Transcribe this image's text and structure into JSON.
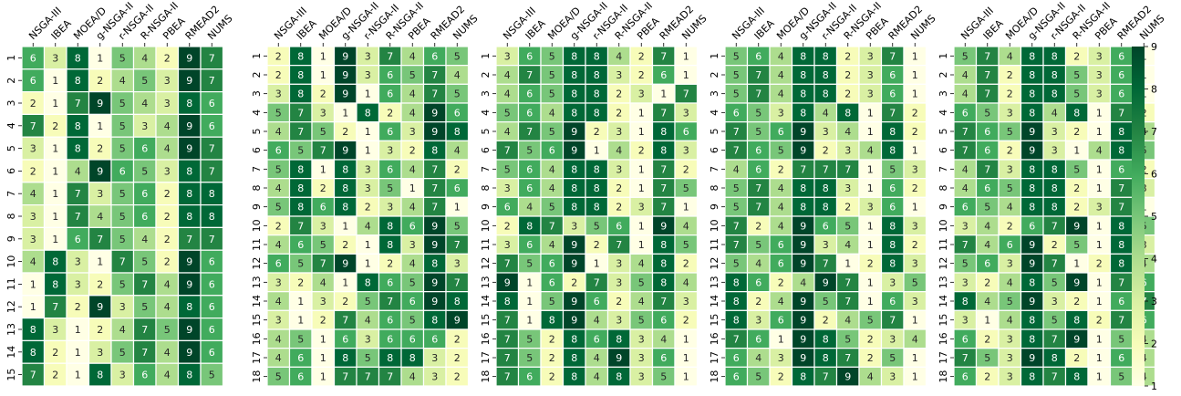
{
  "colorscale": {
    "colors": [
      "#ffffe5",
      "#f7fcb9",
      "#d9f0a3",
      "#addd8e",
      "#78c679",
      "#41ab5d",
      "#238443",
      "#006837",
      "#004529"
    ],
    "min": 1,
    "max": 9,
    "ticks": [
      "1",
      "2",
      "3",
      "4",
      "5",
      "6",
      "7",
      "8",
      "9"
    ]
  },
  "chart_data": [
    {
      "type": "heatmap",
      "columns": [
        "NSGA-III",
        "IBEA",
        "MOEA/D",
        "g-NSGA-II",
        "r-NSGA-II",
        "R-NSGA-II",
        "PBEA",
        "RMEAD2",
        "NUMS"
      ],
      "rows": [
        "1",
        "2",
        "3",
        "4",
        "5",
        "6",
        "7",
        "8",
        "9",
        "10",
        "11",
        "12",
        "13",
        "14",
        "15"
      ],
      "values": [
        [
          6,
          3,
          8,
          1,
          5,
          4,
          2,
          9,
          7
        ],
        [
          6,
          1,
          8,
          2,
          4,
          5,
          3,
          9,
          7
        ],
        [
          2,
          1,
          7,
          9,
          5,
          4,
          3,
          8,
          6
        ],
        [
          7,
          2,
          8,
          1,
          5,
          3,
          4,
          9,
          6
        ],
        [
          3,
          1,
          8,
          2,
          5,
          6,
          4,
          9,
          7
        ],
        [
          2,
          1,
          4,
          9,
          6,
          5,
          3,
          8,
          7
        ],
        [
          4,
          1,
          7,
          3,
          5,
          6,
          2,
          8,
          8
        ],
        [
          3,
          1,
          7,
          4,
          5,
          6,
          2,
          8,
          8
        ],
        [
          3,
          1,
          6,
          7,
          5,
          4,
          2,
          7,
          7
        ],
        [
          4,
          8,
          3,
          1,
          7,
          5,
          2,
          9,
          6
        ],
        [
          1,
          8,
          3,
          2,
          5,
          7,
          4,
          9,
          6
        ],
        [
          1,
          7,
          2,
          9,
          3,
          5,
          4,
          8,
          6
        ],
        [
          8,
          3,
          1,
          2,
          4,
          7,
          5,
          9,
          6
        ],
        [
          8,
          2,
          1,
          3,
          5,
          7,
          4,
          9,
          6
        ],
        [
          7,
          2,
          1,
          8,
          3,
          6,
          4,
          8,
          5
        ]
      ]
    },
    {
      "type": "heatmap",
      "columns": [
        "NSGA-III",
        "IBEA",
        "MOEA/D",
        "g-NSGA-II",
        "r-NSGA-II",
        "R-NSGA-II",
        "PBEA",
        "RMEAD2",
        "NUMS"
      ],
      "rows": [
        "1",
        "2",
        "3",
        "4",
        "5",
        "6",
        "7",
        "8",
        "9",
        "10",
        "11",
        "12",
        "13",
        "14",
        "15",
        "16",
        "17",
        "18"
      ],
      "values": [
        [
          2,
          8,
          1,
          9,
          3,
          7,
          4,
          6,
          5
        ],
        [
          2,
          8,
          1,
          9,
          3,
          6,
          5,
          7,
          4
        ],
        [
          3,
          8,
          2,
          9,
          1,
          6,
          4,
          7,
          5
        ],
        [
          5,
          7,
          3,
          1,
          8,
          2,
          4,
          9,
          6
        ],
        [
          4,
          7,
          5,
          2,
          1,
          6,
          3,
          9,
          8
        ],
        [
          6,
          5,
          7,
          9,
          1,
          3,
          2,
          8,
          4
        ],
        [
          5,
          8,
          1,
          8,
          3,
          6,
          4,
          7,
          2
        ],
        [
          4,
          8,
          2,
          8,
          3,
          5,
          1,
          7,
          6
        ],
        [
          5,
          8,
          6,
          8,
          2,
          3,
          4,
          7,
          1
        ],
        [
          2,
          7,
          3,
          1,
          4,
          8,
          6,
          9,
          5
        ],
        [
          4,
          6,
          5,
          2,
          1,
          8,
          3,
          9,
          7
        ],
        [
          6,
          5,
          7,
          9,
          1,
          2,
          4,
          8,
          3
        ],
        [
          3,
          2,
          4,
          1,
          8,
          6,
          5,
          9,
          7
        ],
        [
          4,
          1,
          3,
          2,
          5,
          7,
          6,
          9,
          8
        ],
        [
          3,
          1,
          2,
          7,
          4,
          6,
          5,
          8,
          9
        ],
        [
          4,
          5,
          1,
          6,
          3,
          6,
          6,
          6,
          2
        ],
        [
          4,
          6,
          1,
          8,
          5,
          8,
          8,
          3,
          2
        ],
        [
          5,
          6,
          1,
          7,
          7,
          7,
          4,
          3,
          2
        ]
      ]
    },
    {
      "type": "heatmap",
      "columns": [
        "NSGA-III",
        "IBEA",
        "MOEA/D",
        "g-NSGA-II",
        "r-NSGA-II",
        "R-NSGA-II",
        "PBEA",
        "RMEAD2",
        "NUMS"
      ],
      "rows": [
        "1",
        "2",
        "3",
        "4",
        "5",
        "6",
        "7",
        "8",
        "9",
        "10",
        "11",
        "12",
        "13",
        "14",
        "15",
        "16",
        "17",
        "18"
      ],
      "values": [
        [
          3,
          6,
          5,
          8,
          8,
          4,
          2,
          7,
          1
        ],
        [
          4,
          7,
          5,
          8,
          8,
          3,
          2,
          6,
          1
        ],
        [
          4,
          6,
          5,
          8,
          8,
          2,
          3,
          1,
          7
        ],
        [
          5,
          6,
          4,
          8,
          8,
          2,
          1,
          7,
          3
        ],
        [
          4,
          7,
          5,
          9,
          2,
          3,
          1,
          8,
          6
        ],
        [
          7,
          5,
          6,
          9,
          1,
          4,
          2,
          8,
          3
        ],
        [
          5,
          6,
          4,
          8,
          8,
          3,
          1,
          7,
          2
        ],
        [
          3,
          6,
          4,
          8,
          8,
          2,
          1,
          7,
          5
        ],
        [
          6,
          4,
          5,
          8,
          8,
          2,
          3,
          7,
          1
        ],
        [
          2,
          8,
          7,
          3,
          5,
          6,
          1,
          9,
          4
        ],
        [
          3,
          6,
          4,
          9,
          2,
          7,
          1,
          8,
          5
        ],
        [
          7,
          5,
          6,
          9,
          1,
          3,
          4,
          8,
          2
        ],
        [
          9,
          1,
          6,
          2,
          7,
          3,
          5,
          8,
          4
        ],
        [
          8,
          1,
          5,
          9,
          6,
          2,
          4,
          7,
          3
        ],
        [
          7,
          1,
          8,
          9,
          4,
          3,
          5,
          6,
          2
        ],
        [
          7,
          5,
          2,
          8,
          6,
          8,
          3,
          4,
          1
        ],
        [
          7,
          5,
          2,
          8,
          4,
          9,
          3,
          6,
          1
        ],
        [
          7,
          6,
          2,
          8,
          4,
          8,
          3,
          5,
          1
        ]
      ]
    },
    {
      "type": "heatmap",
      "columns": [
        "NSGA-III",
        "IBEA",
        "MOEA/D",
        "g-NSGA-II",
        "r-NSGA-II",
        "R-NSGA-II",
        "PBEA",
        "RMEAD2",
        "NUMS"
      ],
      "rows": [
        "1",
        "2",
        "3",
        "4",
        "5",
        "6",
        "7",
        "8",
        "9",
        "10",
        "11",
        "12",
        "13",
        "14",
        "15",
        "16",
        "17",
        "18"
      ],
      "values": [
        [
          5,
          6,
          4,
          8,
          8,
          2,
          3,
          7,
          1
        ],
        [
          5,
          7,
          4,
          8,
          8,
          2,
          3,
          6,
          1
        ],
        [
          5,
          7,
          4,
          8,
          8,
          2,
          3,
          6,
          1
        ],
        [
          6,
          5,
          3,
          8,
          4,
          8,
          1,
          7,
          2
        ],
        [
          7,
          5,
          6,
          9,
          3,
          4,
          1,
          8,
          2
        ],
        [
          7,
          6,
          5,
          9,
          2,
          3,
          4,
          8,
          1
        ],
        [
          4,
          6,
          2,
          7,
          7,
          7,
          1,
          5,
          3
        ],
        [
          5,
          7,
          4,
          8,
          8,
          3,
          1,
          6,
          2
        ],
        [
          5,
          7,
          4,
          8,
          8,
          2,
          3,
          6,
          1
        ],
        [
          7,
          2,
          4,
          9,
          6,
          5,
          1,
          8,
          3
        ],
        [
          7,
          5,
          6,
          9,
          3,
          4,
          1,
          8,
          2
        ],
        [
          5,
          4,
          6,
          9,
          7,
          1,
          2,
          8,
          3
        ],
        [
          8,
          6,
          2,
          4,
          9,
          7,
          1,
          3,
          5
        ],
        [
          8,
          2,
          4,
          9,
          5,
          7,
          1,
          6,
          3
        ],
        [
          8,
          3,
          6,
          9,
          2,
          4,
          5,
          7,
          1
        ],
        [
          7,
          6,
          1,
          9,
          8,
          5,
          2,
          3,
          4
        ],
        [
          6,
          4,
          3,
          9,
          8,
          7,
          2,
          5,
          1
        ],
        [
          6,
          5,
          2,
          8,
          7,
          9,
          4,
          3,
          1
        ]
      ]
    },
    {
      "type": "heatmap",
      "columns": [
        "NSGA-III",
        "IBEA",
        "MOEA/D",
        "g-NSGA-II",
        "r-NSGA-II",
        "R-NSGA-II",
        "PBEA",
        "RMEAD2",
        "NUMS"
      ],
      "rows": [
        "1",
        "2",
        "3",
        "4",
        "5",
        "6",
        "7",
        "8",
        "9",
        "10",
        "11",
        "12",
        "13",
        "14",
        "15",
        "16",
        "17",
        "18"
      ],
      "values": [
        [
          5,
          7,
          4,
          8,
          8,
          2,
          3,
          6,
          1
        ],
        [
          4,
          7,
          2,
          8,
          8,
          5,
          3,
          6,
          1
        ],
        [
          4,
          7,
          2,
          8,
          8,
          5,
          3,
          6,
          1
        ],
        [
          6,
          5,
          3,
          8,
          4,
          8,
          1,
          7,
          2
        ],
        [
          7,
          6,
          5,
          9,
          3,
          2,
          1,
          8,
          4
        ],
        [
          7,
          6,
          2,
          9,
          3,
          1,
          4,
          8,
          5
        ],
        [
          4,
          7,
          3,
          8,
          8,
          5,
          1,
          6,
          2
        ],
        [
          4,
          6,
          5,
          8,
          8,
          2,
          1,
          7,
          3
        ],
        [
          6,
          5,
          4,
          8,
          8,
          2,
          3,
          7,
          1
        ],
        [
          3,
          4,
          2,
          6,
          7,
          9,
          1,
          8,
          5
        ],
        [
          7,
          4,
          6,
          9,
          2,
          5,
          1,
          8,
          3
        ],
        [
          5,
          6,
          3,
          9,
          7,
          1,
          2,
          8,
          4
        ],
        [
          3,
          2,
          4,
          8,
          5,
          9,
          1,
          7,
          6
        ],
        [
          8,
          4,
          5,
          9,
          3,
          2,
          1,
          6,
          7
        ],
        [
          3,
          1,
          4,
          8,
          5,
          8,
          2,
          7,
          6
        ],
        [
          6,
          2,
          3,
          8,
          7,
          9,
          1,
          5,
          4
        ],
        [
          7,
          5,
          3,
          9,
          8,
          2,
          1,
          6,
          4
        ],
        [
          6,
          2,
          3,
          8,
          7,
          8,
          1,
          5,
          4
        ]
      ]
    }
  ]
}
